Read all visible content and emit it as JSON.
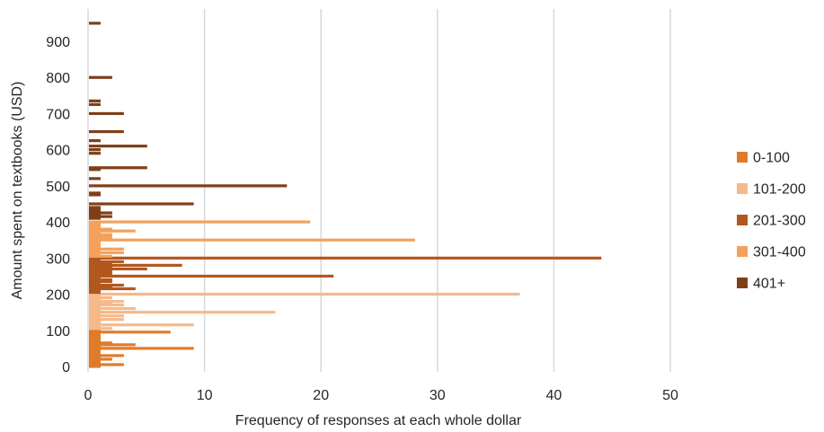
{
  "chart_data": {
    "type": "bar",
    "orientation": "horizontal",
    "title": "",
    "xlabel": "Frequency of responses at each whole dollar",
    "ylabel": "Amount spent on textbooks (USD)",
    "xlim": [
      0,
      50
    ],
    "ylim": [
      0,
      950
    ],
    "x_ticks": [
      "0",
      "10",
      "20",
      "30",
      "40",
      "50"
    ],
    "y_ticks": [
      "0",
      "100",
      "200",
      "300",
      "400",
      "500",
      "600",
      "700",
      "800",
      "900"
    ],
    "grid": "vertical",
    "legend_position": "right",
    "series": [
      {
        "name": "0-100",
        "color": "#E07B2A",
        "points": [
          {
            "y": 0,
            "x": 1
          },
          {
            "y": 5,
            "x": 3
          },
          {
            "y": 10,
            "x": 1
          },
          {
            "y": 15,
            "x": 1
          },
          {
            "y": 20,
            "x": 2
          },
          {
            "y": 25,
            "x": 1
          },
          {
            "y": 30,
            "x": 3
          },
          {
            "y": 35,
            "x": 1
          },
          {
            "y": 40,
            "x": 1
          },
          {
            "y": 45,
            "x": 1
          },
          {
            "y": 50,
            "x": 9
          },
          {
            "y": 55,
            "x": 1
          },
          {
            "y": 60,
            "x": 4
          },
          {
            "y": 65,
            "x": 2
          },
          {
            "y": 70,
            "x": 1
          },
          {
            "y": 75,
            "x": 1
          },
          {
            "y": 80,
            "x": 1
          },
          {
            "y": 85,
            "x": 1
          },
          {
            "y": 90,
            "x": 1
          },
          {
            "y": 95,
            "x": 7
          },
          {
            "y": 100,
            "x": 1
          }
        ]
      },
      {
        "name": "101-200",
        "color": "#F5B98A",
        "points": [
          {
            "y": 105,
            "x": 2
          },
          {
            "y": 110,
            "x": 1
          },
          {
            "y": 115,
            "x": 9
          },
          {
            "y": 120,
            "x": 1
          },
          {
            "y": 125,
            "x": 1
          },
          {
            "y": 130,
            "x": 3
          },
          {
            "y": 135,
            "x": 1
          },
          {
            "y": 140,
            "x": 3
          },
          {
            "y": 145,
            "x": 1
          },
          {
            "y": 150,
            "x": 16
          },
          {
            "y": 155,
            "x": 1
          },
          {
            "y": 160,
            "x": 4
          },
          {
            "y": 165,
            "x": 1
          },
          {
            "y": 170,
            "x": 3
          },
          {
            "y": 175,
            "x": 2
          },
          {
            "y": 180,
            "x": 3
          },
          {
            "y": 185,
            "x": 1
          },
          {
            "y": 190,
            "x": 2
          },
          {
            "y": 195,
            "x": 1
          },
          {
            "y": 200,
            "x": 37
          }
        ]
      },
      {
        "name": "201-300",
        "color": "#B2571F",
        "points": [
          {
            "y": 205,
            "x": 1
          },
          {
            "y": 210,
            "x": 1
          },
          {
            "y": 215,
            "x": 4
          },
          {
            "y": 220,
            "x": 2
          },
          {
            "y": 225,
            "x": 3
          },
          {
            "y": 230,
            "x": 1
          },
          {
            "y": 235,
            "x": 2
          },
          {
            "y": 240,
            "x": 2
          },
          {
            "y": 245,
            "x": 1
          },
          {
            "y": 250,
            "x": 21
          },
          {
            "y": 255,
            "x": 2
          },
          {
            "y": 260,
            "x": 2
          },
          {
            "y": 265,
            "x": 2
          },
          {
            "y": 270,
            "x": 5
          },
          {
            "y": 275,
            "x": 2
          },
          {
            "y": 280,
            "x": 8
          },
          {
            "y": 285,
            "x": 2
          },
          {
            "y": 290,
            "x": 3
          },
          {
            "y": 295,
            "x": 1
          },
          {
            "y": 300,
            "x": 44
          }
        ]
      },
      {
        "name": "301-400",
        "color": "#F4A15B",
        "points": [
          {
            "y": 305,
            "x": 2
          },
          {
            "y": 310,
            "x": 1
          },
          {
            "y": 315,
            "x": 3
          },
          {
            "y": 320,
            "x": 1
          },
          {
            "y": 325,
            "x": 3
          },
          {
            "y": 330,
            "x": 1
          },
          {
            "y": 335,
            "x": 1
          },
          {
            "y": 340,
            "x": 1
          },
          {
            "y": 345,
            "x": 1
          },
          {
            "y": 350,
            "x": 28
          },
          {
            "y": 355,
            "x": 2
          },
          {
            "y": 360,
            "x": 2
          },
          {
            "y": 365,
            "x": 2
          },
          {
            "y": 370,
            "x": 1
          },
          {
            "y": 375,
            "x": 4
          },
          {
            "y": 380,
            "x": 2
          },
          {
            "y": 385,
            "x": 1
          },
          {
            "y": 390,
            "x": 1
          },
          {
            "y": 395,
            "x": 1
          },
          {
            "y": 400,
            "x": 19
          }
        ]
      },
      {
        "name": "401+",
        "color": "#7E3F18",
        "points": [
          {
            "y": 410,
            "x": 1
          },
          {
            "y": 415,
            "x": 2
          },
          {
            "y": 420,
            "x": 1
          },
          {
            "y": 425,
            "x": 2
          },
          {
            "y": 430,
            "x": 1
          },
          {
            "y": 435,
            "x": 1
          },
          {
            "y": 440,
            "x": 1
          },
          {
            "y": 450,
            "x": 9
          },
          {
            "y": 475,
            "x": 1
          },
          {
            "y": 480,
            "x": 1
          },
          {
            "y": 500,
            "x": 17
          },
          {
            "y": 520,
            "x": 1
          },
          {
            "y": 545,
            "x": 1
          },
          {
            "y": 550,
            "x": 5
          },
          {
            "y": 590,
            "x": 1
          },
          {
            "y": 600,
            "x": 1
          },
          {
            "y": 610,
            "x": 5
          },
          {
            "y": 625,
            "x": 1
          },
          {
            "y": 650,
            "x": 3
          },
          {
            "y": 700,
            "x": 3
          },
          {
            "y": 725,
            "x": 1
          },
          {
            "y": 735,
            "x": 1
          },
          {
            "y": 800,
            "x": 2
          },
          {
            "y": 950,
            "x": 1
          }
        ]
      }
    ]
  }
}
